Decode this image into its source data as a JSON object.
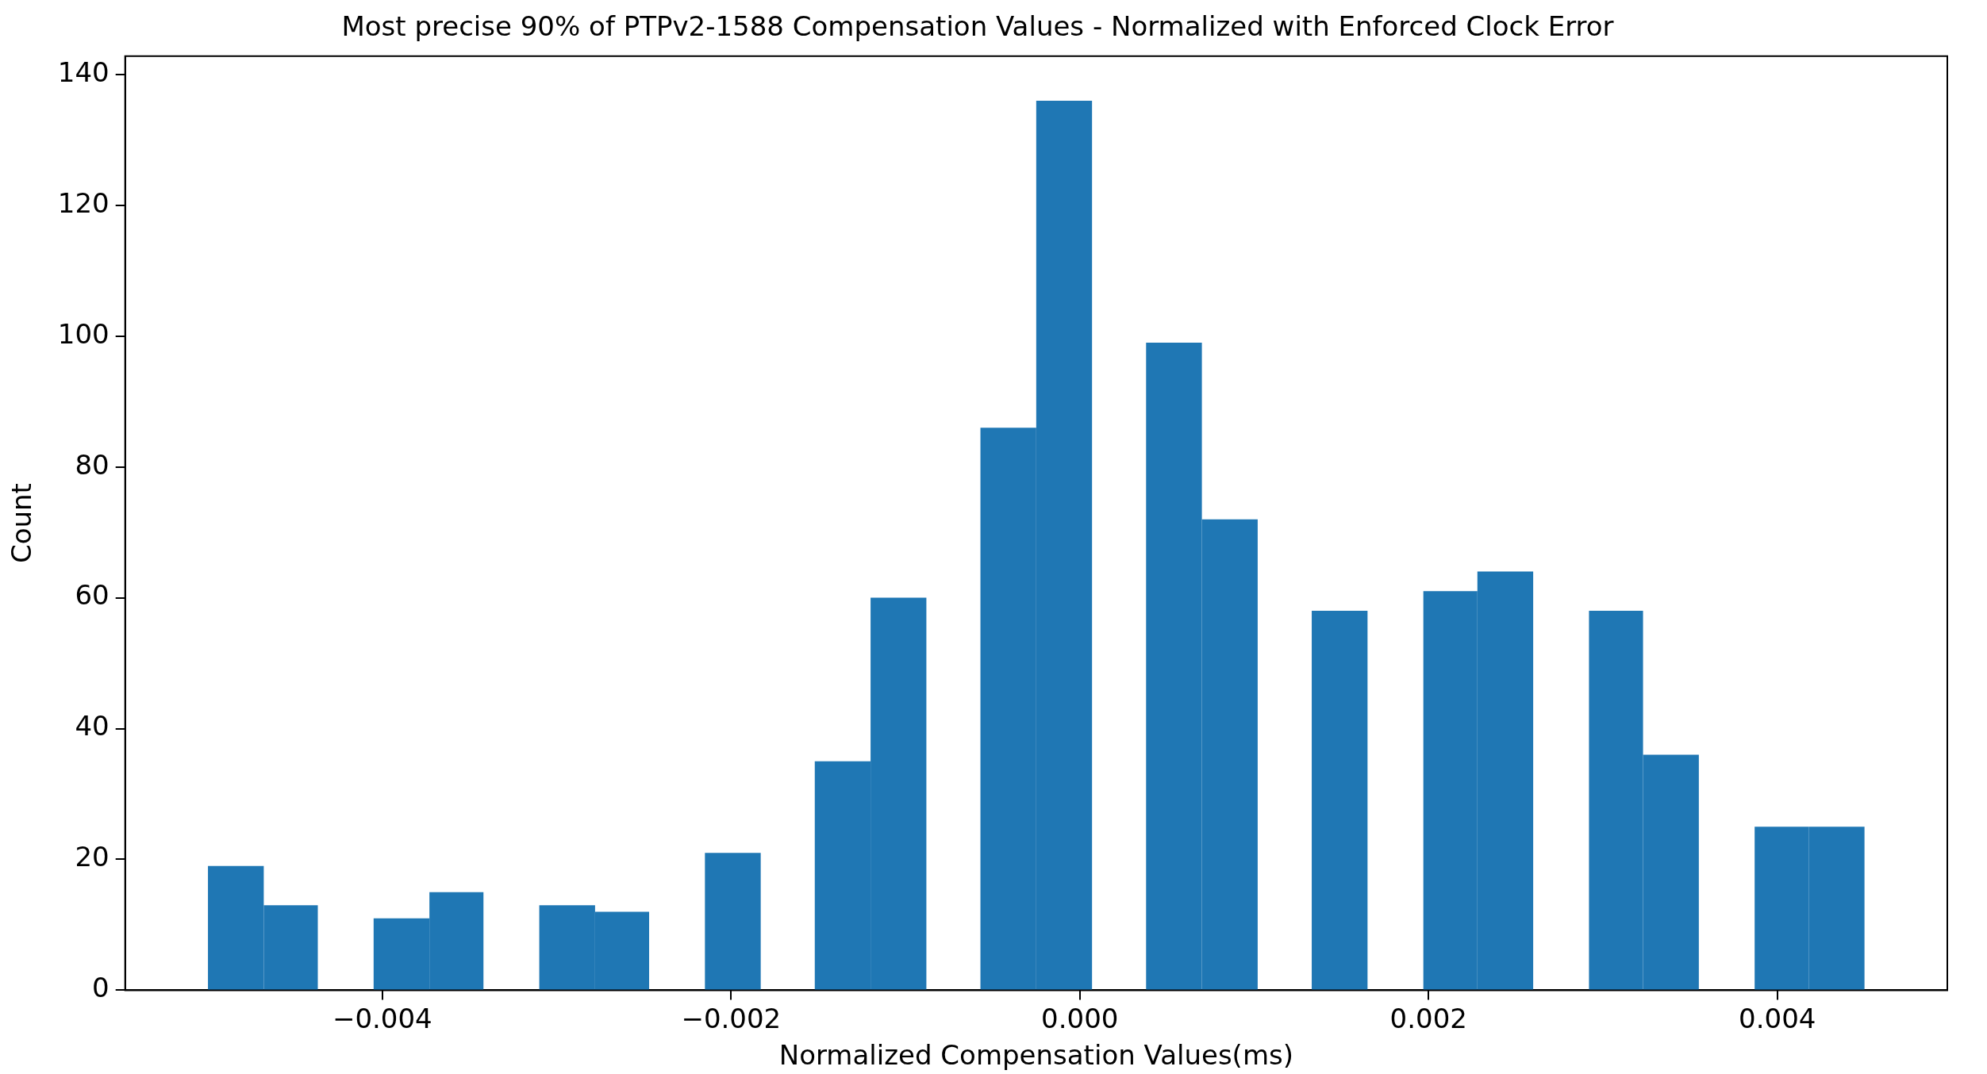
{
  "chart_data": {
    "type": "histogram",
    "title": "Most precise 90% of PTPv2-1588 Compensation Values - Normalized with Enforced Clock Error",
    "xlabel": "Normalized Compensation Values(ms)",
    "ylabel": "Count",
    "color": "#1f77b4",
    "bins": [
      -0.005,
      -0.00468,
      -0.00437,
      -0.00405,
      -0.00373,
      -0.00342,
      -0.0031,
      -0.00278,
      -0.00247,
      -0.00215,
      -0.00183,
      -0.00152,
      -0.0012,
      -0.00088,
      -0.00057,
      -0.00025,
      7e-05,
      0.00038,
      0.0007,
      0.00102,
      0.00133,
      0.00165,
      0.00197,
      0.00228,
      0.0026,
      0.00292,
      0.00323,
      0.00355,
      0.00387,
      0.00418,
      0.0045
    ],
    "values": [
      19,
      13,
      0,
      11,
      15,
      0,
      13,
      12,
      0,
      21,
      0,
      35,
      60,
      0,
      86,
      136,
      0,
      99,
      72,
      0,
      58,
      0,
      61,
      64,
      0,
      58,
      36,
      0,
      25,
      25
    ],
    "xlim": [
      -0.005475,
      0.004975
    ],
    "xticks": [
      {
        "value": -0.004,
        "label": "−0.004"
      },
      {
        "value": -0.002,
        "label": "−0.002"
      },
      {
        "value": 0,
        "label": "0.000"
      },
      {
        "value": 0.002,
        "label": "0.002"
      },
      {
        "value": 0.004,
        "label": "0.004"
      }
    ],
    "ylim": [
      0,
      142.8
    ],
    "yticks": [
      0,
      20,
      40,
      60,
      80,
      100,
      120,
      140
    ],
    "grid": false,
    "legend": false
  }
}
